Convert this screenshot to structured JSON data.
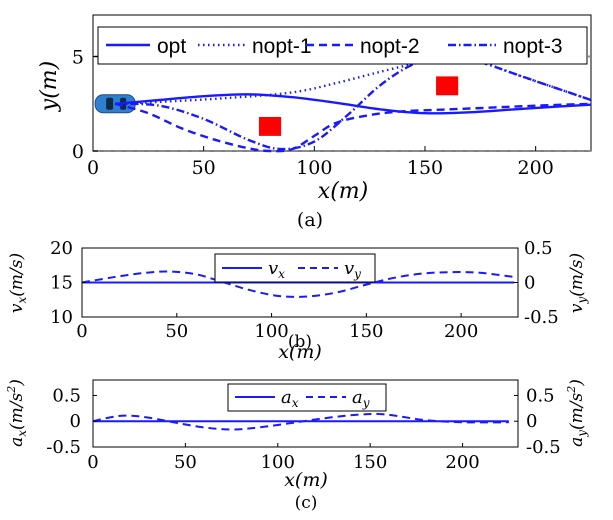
{
  "chart_data": [
    {
      "panel": "(a)",
      "type": "line",
      "xlabel": "x(m)",
      "ylabel": "y(m)",
      "xlim": [
        0,
        225
      ],
      "ylim": [
        0,
        7.2
      ],
      "xticks": [
        0,
        50,
        100,
        150,
        200
      ],
      "yticks": [
        0,
        5
      ],
      "legend_position": "top",
      "lane_bounds": [
        0,
        5
      ],
      "series": [
        {
          "name": "opt",
          "style": "solid",
          "x": [
            10,
            30,
            50,
            70,
            90,
            110,
            130,
            150,
            170,
            190,
            210,
            225
          ],
          "y": [
            2.5,
            2.7,
            2.9,
            3.0,
            2.85,
            2.55,
            2.2,
            2.0,
            2.05,
            2.2,
            2.35,
            2.45
          ]
        },
        {
          "name": "nopt-1",
          "style": "dotted",
          "x": [
            10,
            30,
            60,
            90,
            110,
            130,
            150,
            160,
            175,
            190,
            210,
            225
          ],
          "y": [
            2.5,
            2.6,
            2.8,
            3.1,
            3.6,
            4.2,
            4.75,
            4.9,
            4.7,
            4.1,
            3.3,
            2.7
          ]
        },
        {
          "name": "nopt-2",
          "style": "dashed",
          "x": [
            10,
            25,
            40,
            55,
            70,
            80,
            90,
            100,
            110,
            125,
            140,
            160,
            180,
            200,
            225
          ],
          "y": [
            2.5,
            2.0,
            1.2,
            0.6,
            0.15,
            0.0,
            0.1,
            0.8,
            1.5,
            1.9,
            2.1,
            2.2,
            2.3,
            2.4,
            2.5
          ]
        },
        {
          "name": "nopt-3",
          "style": "dashdot",
          "x": [
            10,
            30,
            50,
            70,
            85,
            100,
            115,
            130,
            145,
            160,
            175,
            195,
            215,
            225
          ],
          "y": [
            2.5,
            2.4,
            1.7,
            0.6,
            0.1,
            0.5,
            1.9,
            3.5,
            4.6,
            5.0,
            4.7,
            3.9,
            3.1,
            2.7
          ]
        }
      ],
      "obstacles": [
        {
          "label": "obstacle",
          "x": 80,
          "y": 1.3,
          "w": 10,
          "h": 1.0,
          "color": "#ff0000"
        },
        {
          "label": "obstacle",
          "x": 160,
          "y": 3.45,
          "w": 10,
          "h": 1.0,
          "color": "#ff0000"
        }
      ],
      "ego_vehicle": {
        "x": 10,
        "y": 2.5,
        "color": "#2f7fcf"
      }
    },
    {
      "panel": "(b)",
      "type": "line",
      "xlabel": "x(m)",
      "ylabel_left": "v_x(m/s)",
      "ylabel_right": "v_y(m/s)",
      "xlim": [
        0,
        230
      ],
      "ylim_left": [
        10,
        20
      ],
      "ylim_right": [
        -0.5,
        0.5
      ],
      "xticks": [
        0,
        50,
        100,
        150,
        200
      ],
      "yticks_left": [
        10,
        15,
        20
      ],
      "yticks_right": [
        -0.5,
        0,
        0.5
      ],
      "legend_position": "top-center",
      "series": [
        {
          "name": "v_x",
          "axis": "left",
          "style": "solid",
          "x": [
            0,
            50,
            100,
            150,
            200,
            228
          ],
          "y": [
            15,
            15,
            15,
            15,
            15,
            15
          ]
        },
        {
          "name": "v_y",
          "axis": "right",
          "style": "dashed",
          "x": [
            0,
            15,
            30,
            45,
            60,
            75,
            90,
            105,
            120,
            135,
            150,
            165,
            180,
            195,
            210,
            228
          ],
          "y": [
            0.0,
            0.07,
            0.13,
            0.16,
            0.12,
            0.0,
            -0.12,
            -0.2,
            -0.2,
            -0.14,
            -0.03,
            0.07,
            0.13,
            0.15,
            0.14,
            0.08
          ]
        }
      ]
    },
    {
      "panel": "(c)",
      "type": "line",
      "xlabel": "x(m)",
      "ylabel_left": "a_x(m/s^2)",
      "ylabel_right": "a_y(m/s^2)",
      "xlim": [
        0,
        230
      ],
      "ylim_left": [
        -0.5,
        0.8
      ],
      "ylim_right": [
        -0.5,
        0.8
      ],
      "xticks": [
        0,
        50,
        100,
        150,
        200
      ],
      "yticks_left": [
        -0.5,
        0,
        0.5
      ],
      "yticks_right": [
        -0.5,
        0,
        0.5
      ],
      "legend_position": "top-center",
      "series": [
        {
          "name": "a_x",
          "axis": "left",
          "style": "solid",
          "x": [
            0,
            50,
            100,
            150,
            200,
            225
          ],
          "y": [
            0,
            0,
            0,
            0,
            0,
            0
          ]
        },
        {
          "name": "a_y",
          "axis": "right",
          "style": "dashed",
          "x": [
            0,
            10,
            18,
            30,
            45,
            60,
            75,
            90,
            110,
            130,
            145,
            155,
            165,
            180,
            200,
            225
          ],
          "y": [
            0.0,
            0.08,
            0.11,
            0.07,
            -0.03,
            -0.12,
            -0.16,
            -0.12,
            -0.02,
            0.08,
            0.13,
            0.14,
            0.1,
            0.02,
            -0.02,
            -0.02
          ]
        }
      ]
    }
  ],
  "figure": {
    "caption_a": "(a)",
    "caption_b": "(b)",
    "caption_c": "(c)"
  },
  "colors": {
    "series": "#1a1aff",
    "obstacle": "#ff0000",
    "lane": "#8c8c8c",
    "car": "#2f7fcf"
  }
}
